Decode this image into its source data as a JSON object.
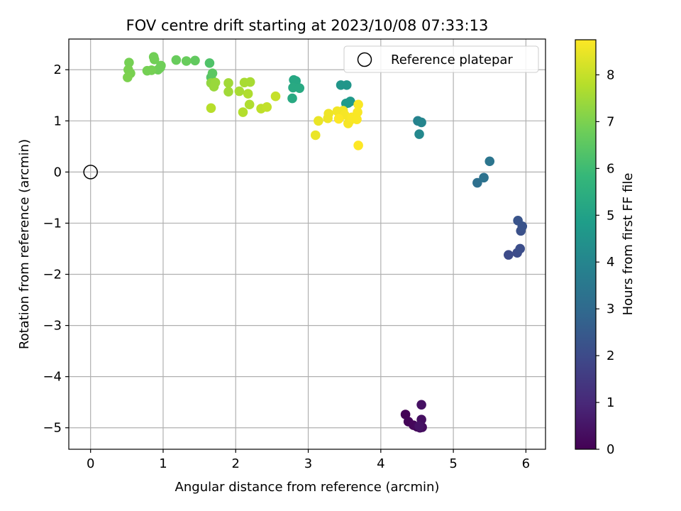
{
  "chart_data": {
    "type": "scatter",
    "title": "FOV centre drift starting at 2023/10/08 07:33:13",
    "xlabel": "Angular distance from reference (arcmin)",
    "ylabel": "Rotation from reference (arcmin)",
    "xlim": [
      -0.3,
      6.27
    ],
    "ylim": [
      -5.42,
      2.6
    ],
    "xticks": [
      0,
      1,
      2,
      3,
      4,
      5,
      6
    ],
    "xtick_labels": [
      "0",
      "1",
      "2",
      "3",
      "4",
      "5",
      "6"
    ],
    "yticks": [
      -5,
      -4,
      -3,
      -2,
      -1,
      0,
      1,
      2
    ],
    "ytick_labels": [
      "−5",
      "−4",
      "−3",
      "−2",
      "−1",
      "0",
      "1",
      "2"
    ],
    "grid": true,
    "legend": {
      "placement": "top-right",
      "entries": [
        {
          "label": "Reference platepar",
          "marker": "open-circle",
          "color": "#000000"
        }
      ]
    },
    "reference_point": {
      "label": "Reference platepar",
      "x": 0.0,
      "y": 0.0
    },
    "colorbar": {
      "label": "Hours from first FF file",
      "colormap": "viridis",
      "range": [
        0,
        8.75
      ],
      "ticks": [
        0,
        1,
        2,
        3,
        4,
        5,
        6,
        7,
        8
      ],
      "tick_labels": [
        "0",
        "1",
        "2",
        "3",
        "4",
        "5",
        "6",
        "7",
        "8"
      ],
      "colors": [
        "#440154",
        "#482878",
        "#3e4989",
        "#31688e",
        "#26828e",
        "#1f9e89",
        "#35b779",
        "#6ece58",
        "#b5de2b",
        "#fde725"
      ]
    },
    "points": [
      {
        "x": 4.34,
        "y": -4.74,
        "h": 0.05
      },
      {
        "x": 4.38,
        "y": -4.88,
        "h": 0.1
      },
      {
        "x": 4.45,
        "y": -4.95,
        "h": 0.15
      },
      {
        "x": 4.5,
        "y": -4.98,
        "h": 0.2
      },
      {
        "x": 4.54,
        "y": -5.0,
        "h": 0.25
      },
      {
        "x": 4.57,
        "y": -4.99,
        "h": 0.3
      },
      {
        "x": 4.56,
        "y": -4.84,
        "h": 0.35
      },
      {
        "x": 4.56,
        "y": -4.55,
        "h": 0.4
      },
      {
        "x": 4.53,
        "y": -4.97,
        "h": 0.45
      },
      {
        "x": 5.76,
        "y": -1.62,
        "h": 2.0
      },
      {
        "x": 5.88,
        "y": -1.58,
        "h": 2.05
      },
      {
        "x": 5.92,
        "y": -1.5,
        "h": 2.1
      },
      {
        "x": 5.93,
        "y": -1.15,
        "h": 2.2
      },
      {
        "x": 5.95,
        "y": -1.06,
        "h": 2.25
      },
      {
        "x": 5.89,
        "y": -0.95,
        "h": 2.3
      },
      {
        "x": 5.33,
        "y": -0.21,
        "h": 3.2
      },
      {
        "x": 5.42,
        "y": -0.11,
        "h": 3.3
      },
      {
        "x": 5.5,
        "y": 0.21,
        "h": 3.4
      },
      {
        "x": 4.51,
        "y": 1.0,
        "h": 3.9
      },
      {
        "x": 4.56,
        "y": 0.97,
        "h": 4.0
      },
      {
        "x": 4.53,
        "y": 0.74,
        "h": 4.1
      },
      {
        "x": 3.45,
        "y": 1.7,
        "h": 4.6
      },
      {
        "x": 3.53,
        "y": 1.7,
        "h": 4.6
      },
      {
        "x": 3.55,
        "y": 1.35,
        "h": 4.7
      },
      {
        "x": 3.58,
        "y": 1.38,
        "h": 4.7
      },
      {
        "x": 3.52,
        "y": 1.34,
        "h": 4.75
      },
      {
        "x": 2.8,
        "y": 1.8,
        "h": 5.2
      },
      {
        "x": 2.83,
        "y": 1.78,
        "h": 5.2
      },
      {
        "x": 2.79,
        "y": 1.65,
        "h": 5.3
      },
      {
        "x": 2.88,
        "y": 1.64,
        "h": 5.3
      },
      {
        "x": 2.78,
        "y": 1.44,
        "h": 5.3
      },
      {
        "x": 1.64,
        "y": 2.13,
        "h": 6.3
      },
      {
        "x": 1.66,
        "y": 1.85,
        "h": 6.4
      },
      {
        "x": 1.68,
        "y": 1.93,
        "h": 6.5
      },
      {
        "x": 1.44,
        "y": 2.18,
        "h": 6.6
      },
      {
        "x": 1.32,
        "y": 2.17,
        "h": 6.7
      },
      {
        "x": 1.18,
        "y": 2.19,
        "h": 6.7
      },
      {
        "x": 0.96,
        "y": 2.04,
        "h": 6.8
      },
      {
        "x": 0.97,
        "y": 2.08,
        "h": 6.8
      },
      {
        "x": 0.93,
        "y": 2.0,
        "h": 6.8
      },
      {
        "x": 0.87,
        "y": 2.25,
        "h": 6.85
      },
      {
        "x": 0.88,
        "y": 2.2,
        "h": 6.85
      },
      {
        "x": 0.84,
        "y": 1.99,
        "h": 6.9
      },
      {
        "x": 0.78,
        "y": 1.98,
        "h": 6.9
      },
      {
        "x": 0.53,
        "y": 2.14,
        "h": 6.9
      },
      {
        "x": 0.55,
        "y": 1.93,
        "h": 6.95
      },
      {
        "x": 0.52,
        "y": 2.0,
        "h": 6.95
      },
      {
        "x": 0.51,
        "y": 1.85,
        "h": 7.0
      },
      {
        "x": 1.66,
        "y": 1.74,
        "h": 7.3
      },
      {
        "x": 1.72,
        "y": 1.75,
        "h": 7.4
      },
      {
        "x": 1.7,
        "y": 1.67,
        "h": 7.4
      },
      {
        "x": 1.9,
        "y": 1.74,
        "h": 7.5
      },
      {
        "x": 1.9,
        "y": 1.57,
        "h": 7.5
      },
      {
        "x": 2.05,
        "y": 1.58,
        "h": 7.6
      },
      {
        "x": 2.12,
        "y": 1.75,
        "h": 7.6
      },
      {
        "x": 2.2,
        "y": 1.76,
        "h": 7.6
      },
      {
        "x": 2.17,
        "y": 1.53,
        "h": 7.7
      },
      {
        "x": 2.19,
        "y": 1.32,
        "h": 7.7
      },
      {
        "x": 2.1,
        "y": 1.17,
        "h": 7.75
      },
      {
        "x": 1.66,
        "y": 1.25,
        "h": 7.8
      },
      {
        "x": 2.35,
        "y": 1.24,
        "h": 7.9
      },
      {
        "x": 2.43,
        "y": 1.27,
        "h": 7.95
      },
      {
        "x": 2.55,
        "y": 1.48,
        "h": 8.0
      },
      {
        "x": 3.1,
        "y": 0.72,
        "h": 8.5
      },
      {
        "x": 3.14,
        "y": 1.0,
        "h": 8.5
      },
      {
        "x": 3.27,
        "y": 1.05,
        "h": 8.55
      },
      {
        "x": 3.28,
        "y": 1.14,
        "h": 8.55
      },
      {
        "x": 3.4,
        "y": 1.19,
        "h": 8.6
      },
      {
        "x": 3.44,
        "y": 1.08,
        "h": 8.6
      },
      {
        "x": 3.48,
        "y": 1.2,
        "h": 8.6
      },
      {
        "x": 3.5,
        "y": 1.12,
        "h": 8.65
      },
      {
        "x": 3.55,
        "y": 0.95,
        "h": 8.65
      },
      {
        "x": 3.57,
        "y": 1.0,
        "h": 8.65
      },
      {
        "x": 3.6,
        "y": 1.07,
        "h": 8.7
      },
      {
        "x": 3.67,
        "y": 1.03,
        "h": 8.7
      },
      {
        "x": 3.68,
        "y": 1.17,
        "h": 8.7
      },
      {
        "x": 3.69,
        "y": 1.32,
        "h": 8.7
      },
      {
        "x": 3.69,
        "y": 0.52,
        "h": 8.75
      },
      {
        "x": 3.42,
        "y": 1.04,
        "h": 8.75
      }
    ]
  }
}
